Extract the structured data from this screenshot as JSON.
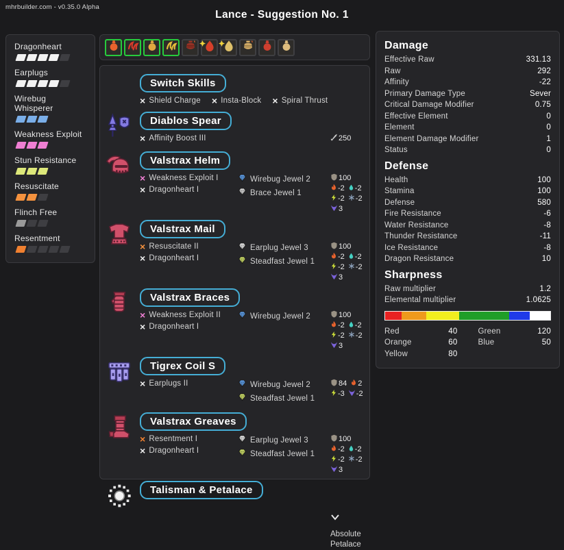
{
  "header": {
    "site": "mhrbuilder.com - v0.35.0 Alpha",
    "title": "Lance - Suggestion No. 1"
  },
  "colors": {
    "accent": "#45aed6",
    "selected_border": "#27cc3d",
    "empty_pip": "#3e3e42",
    "fire": "#e8622d",
    "water": "#45d0c2",
    "thunder": "#cfe23a",
    "ice": "#93a9c4",
    "dragon": "#7a62d8",
    "defense": "#9a9285",
    "attack": "#c8c8c8"
  },
  "sidebar": {
    "skills": [
      {
        "name": "Dragonheart",
        "level": 4,
        "max": 5,
        "color": "#f2f2f2"
      },
      {
        "name": "Earplugs",
        "level": 4,
        "max": 5,
        "color": "#f2f2f2"
      },
      {
        "name": "Wirebug Whisperer",
        "level": 3,
        "max": 3,
        "color": "#7aaee8"
      },
      {
        "name": "Weakness Exploit",
        "level": 3,
        "max": 3,
        "color": "#ef7fd3"
      },
      {
        "name": "Stun Resistance",
        "level": 3,
        "max": 3,
        "color": "#dde87a"
      },
      {
        "name": "Resuscitate",
        "level": 2,
        "max": 3,
        "color": "#f5923e"
      },
      {
        "name": "Flinch Free",
        "level": 1,
        "max": 3,
        "color": "#9a9a9a"
      },
      {
        "name": "Resentment",
        "level": 1,
        "max": 5,
        "color": "#f08030"
      }
    ]
  },
  "items_bar": {
    "items": [
      {
        "name": "orange-flask",
        "shape": "flask",
        "color": "#e8622d",
        "selected": true,
        "sparkle": false,
        "fuse": false
      },
      {
        "name": "red-claw",
        "shape": "claw",
        "color": "#d63a2a",
        "selected": true,
        "sparkle": false,
        "fuse": false
      },
      {
        "name": "tan-flask",
        "shape": "flask",
        "color": "#e0a83f",
        "selected": true,
        "sparkle": false,
        "fuse": false
      },
      {
        "name": "yellow-claw",
        "shape": "claw",
        "color": "#e2bc3a",
        "selected": true,
        "sparkle": false,
        "fuse": false
      },
      {
        "name": "dark-red-pot",
        "shape": "pot",
        "color": "#9c3326",
        "selected": false,
        "sparkle": false,
        "fuse": true
      },
      {
        "name": "red-drop",
        "shape": "drop",
        "color": "#d6402a",
        "selected": false,
        "sparkle": true,
        "fuse": false
      },
      {
        "name": "tan-drop",
        "shape": "drop",
        "color": "#dec06a",
        "selected": false,
        "sparkle": true,
        "fuse": false
      },
      {
        "name": "tan-pot",
        "shape": "pot",
        "color": "#d8b068",
        "selected": false,
        "sparkle": false,
        "fuse": true
      },
      {
        "name": "red-flask",
        "shape": "flask",
        "color": "#cf3f2f",
        "selected": false,
        "sparkle": false,
        "fuse": false
      },
      {
        "name": "tan-flask-2",
        "shape": "flask",
        "color": "#dfbd7d",
        "selected": false,
        "sparkle": false,
        "fuse": false
      }
    ]
  },
  "equipment": {
    "rows": [
      {
        "type": "switch",
        "name": "Switch Skills",
        "skills": [
          {
            "label": "Shield Charge",
            "color": "#ececec"
          },
          {
            "label": "Insta-Block",
            "color": "#ececec"
          },
          {
            "label": "Spiral Thrust",
            "color": "#ececec"
          }
        ]
      },
      {
        "type": "weapon",
        "name": "Diablos Spear",
        "icon": "lance",
        "skills": [
          {
            "label": "Affinity Boost III",
            "color": "#ececec"
          }
        ],
        "jewels": [],
        "stats": [
          {
            "stat": "attack",
            "value": "250"
          }
        ]
      },
      {
        "type": "armor",
        "name": "Valstrax Helm",
        "icon": "helm",
        "skills": [
          {
            "label": "Weakness Exploit I",
            "color": "#ef7fd3"
          },
          {
            "label": "Dragonheart I",
            "color": "#ececec"
          }
        ],
        "jewels": [
          {
            "label": "Wirebug Jewel 2",
            "color": "#5f9fe8"
          },
          {
            "label": "Brace Jewel 1",
            "color": "#d8d8d8"
          }
        ],
        "stats": [
          {
            "stat": "defense",
            "value": "100"
          },
          {
            "stat": "fire",
            "value": "-2"
          },
          {
            "stat": "water",
            "value": "-2"
          },
          {
            "stat": "thunder",
            "value": "-2"
          },
          {
            "stat": "ice",
            "value": "-2"
          },
          {
            "stat": "dragon",
            "value": "3"
          }
        ]
      },
      {
        "type": "armor",
        "name": "Valstrax Mail",
        "icon": "mail",
        "skills": [
          {
            "label": "Resuscitate II",
            "color": "#f5923e"
          },
          {
            "label": "Dragonheart I",
            "color": "#ececec"
          }
        ],
        "jewels": [
          {
            "label": "Earplug Jewel 3",
            "color": "#e8e8e8"
          },
          {
            "label": "Steadfast Jewel 1",
            "color": "#cfe06a"
          }
        ],
        "stats": [
          {
            "stat": "defense",
            "value": "100"
          },
          {
            "stat": "fire",
            "value": "-2"
          },
          {
            "stat": "water",
            "value": "-2"
          },
          {
            "stat": "thunder",
            "value": "-2"
          },
          {
            "stat": "ice",
            "value": "-2"
          },
          {
            "stat": "dragon",
            "value": "3"
          }
        ]
      },
      {
        "type": "armor",
        "name": "Valstrax Braces",
        "icon": "braces",
        "skills": [
          {
            "label": "Weakness Exploit II",
            "color": "#ef7fd3"
          },
          {
            "label": "Dragonheart I",
            "color": "#ececec"
          }
        ],
        "jewels": [
          {
            "label": "Wirebug Jewel 2",
            "color": "#5f9fe8"
          }
        ],
        "stats": [
          {
            "stat": "defense",
            "value": "100"
          },
          {
            "stat": "fire",
            "value": "-2"
          },
          {
            "stat": "water",
            "value": "-2"
          },
          {
            "stat": "thunder",
            "value": "-2"
          },
          {
            "stat": "ice",
            "value": "-2"
          },
          {
            "stat": "dragon",
            "value": "3"
          }
        ]
      },
      {
        "type": "armor",
        "name": "Tigrex Coil S",
        "icon": "coil",
        "skills": [
          {
            "label": "Earplugs II",
            "color": "#ececec"
          }
        ],
        "jewels": [
          {
            "label": "Wirebug Jewel 2",
            "color": "#5f9fe8"
          },
          {
            "label": "Steadfast Jewel 1",
            "color": "#cfe06a"
          }
        ],
        "stats": [
          {
            "stat": "defense",
            "value": "84"
          },
          {
            "stat": "fire",
            "value": "2"
          },
          {
            "stat": "thunder",
            "value": "-3"
          },
          {
            "stat": "dragon",
            "value": "-2"
          }
        ]
      },
      {
        "type": "armor",
        "name": "Valstrax Greaves",
        "icon": "greaves",
        "skills": [
          {
            "label": "Resentment I",
            "color": "#f08030"
          },
          {
            "label": "Dragonheart I",
            "color": "#ececec"
          }
        ],
        "jewels": [
          {
            "label": "Earplug Jewel 3",
            "color": "#e8e8e8"
          },
          {
            "label": "Steadfast Jewel 1",
            "color": "#cfe06a"
          }
        ],
        "stats": [
          {
            "stat": "defense",
            "value": "100"
          },
          {
            "stat": "fire",
            "value": "-2"
          },
          {
            "stat": "water",
            "value": "-2"
          },
          {
            "stat": "thunder",
            "value": "-2"
          },
          {
            "stat": "ice",
            "value": "-2"
          },
          {
            "stat": "dragon",
            "value": "3"
          }
        ]
      },
      {
        "type": "talisman",
        "name": "Talisman & Petalace",
        "icon": "talisman",
        "petalace": "Absolute Petalace"
      }
    ]
  },
  "stats": {
    "sections": [
      {
        "id": "damage",
        "title": "Damage",
        "rows": [
          {
            "label": "Effective Raw",
            "value": "331.13"
          },
          {
            "label": "Raw",
            "value": "292"
          },
          {
            "label": "Affinity",
            "value": "-22"
          },
          {
            "label": "Primary Damage Type",
            "value": "Sever"
          },
          {
            "label": "Critical Damage Modifier",
            "value": "0.75"
          },
          {
            "label": "Effective Element",
            "value": "0"
          },
          {
            "label": "Element",
            "value": "0"
          },
          {
            "label": "Element Damage Modifier",
            "value": "1"
          },
          {
            "label": "Status",
            "value": "0"
          }
        ]
      },
      {
        "id": "defense",
        "title": "Defense",
        "rows": [
          {
            "label": "Health",
            "value": "100"
          },
          {
            "label": "Stamina",
            "value": "100"
          },
          {
            "label": "Defense",
            "value": "580"
          },
          {
            "label": "Fire Resistance",
            "value": "-6"
          },
          {
            "label": "Water Resistance",
            "value": "-8"
          },
          {
            "label": "Thunder Resistance",
            "value": "-11"
          },
          {
            "label": "Ice Resistance",
            "value": "-8"
          },
          {
            "label": "Dragon Resistance",
            "value": "10"
          }
        ]
      },
      {
        "id": "sharpness",
        "title": "Sharpness",
        "rows": [
          {
            "label": "Raw multiplier",
            "value": "1.2"
          },
          {
            "label": "Elemental multiplier",
            "value": "1.0625"
          }
        ],
        "bar": {
          "max": 400,
          "empty_color": "#ffffff",
          "segments": [
            {
              "label": "Red",
              "color": "#e82222",
              "value": 40
            },
            {
              "label": "Orange",
              "color": "#ef9a1c",
              "value": 60
            },
            {
              "label": "Yellow",
              "color": "#f2ee1f",
              "value": 80
            },
            {
              "label": "Green",
              "color": "#1f9e28",
              "value": 120
            },
            {
              "label": "Blue",
              "color": "#1f3ae8",
              "value": 50
            }
          ]
        }
      }
    ]
  }
}
